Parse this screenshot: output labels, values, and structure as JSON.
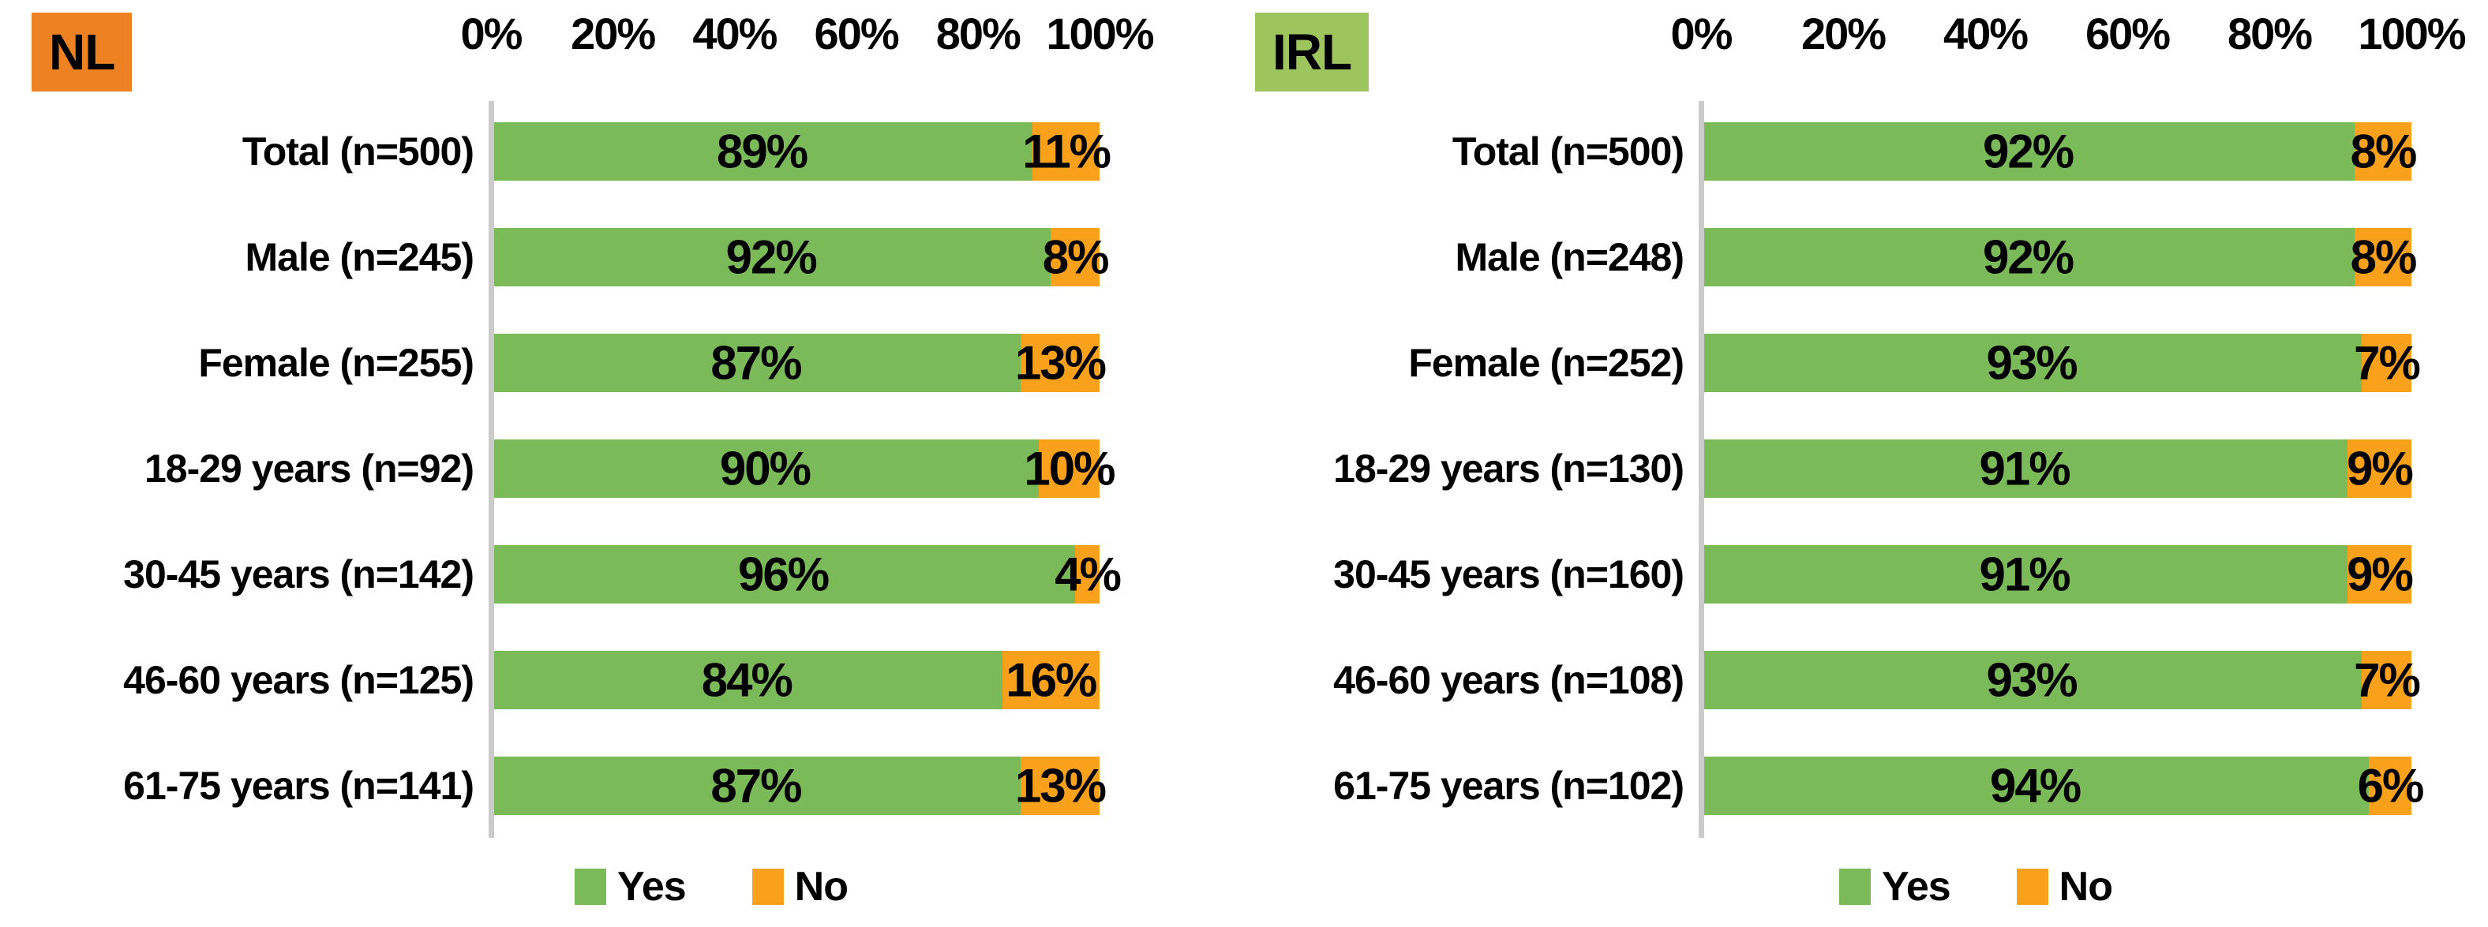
{
  "page": {
    "background": "#ffffff"
  },
  "axis_line_color": "#CBCBCB",
  "chart_data": [
    {
      "type": "bar",
      "orientation": "horizontal",
      "stacked": true,
      "title": "NL",
      "title_badge_color": "#EE8223",
      "categories": [
        "Total (n=500)",
        "Male (n=245)",
        "Female (n=255)",
        "18-29 years (n=92)",
        "30-45 years (n=142)",
        "46-60 years (n=125)",
        "61-75 years (n=141)"
      ],
      "series": [
        {
          "name": "Yes",
          "color": "#7BBA59",
          "values": [
            89,
            92,
            87,
            90,
            96,
            84,
            87
          ],
          "labels": [
            "89%",
            "92%",
            "87%",
            "90%",
            "96%",
            "84%",
            "87%"
          ]
        },
        {
          "name": "No",
          "color": "#F9A11B",
          "values": [
            11,
            8,
            13,
            10,
            4,
            16,
            13
          ],
          "labels": [
            "11%",
            "8%",
            "13%",
            "10%",
            "4%",
            "16%",
            "13%"
          ]
        }
      ],
      "xlim": [
        0,
        100
      ],
      "x_ticks": [
        "0%",
        "20%",
        "40%",
        "60%",
        "80%",
        "100%"
      ],
      "grid": false,
      "legend_position": "bottom",
      "legend": [
        {
          "label": "Yes",
          "color": "#7BBA59"
        },
        {
          "label": "No",
          "color": "#F9A11B"
        }
      ]
    },
    {
      "type": "bar",
      "orientation": "horizontal",
      "stacked": true,
      "title": "IRL",
      "title_badge_color": "#9EC45E",
      "categories": [
        "Total (n=500)",
        "Male (n=248)",
        "Female (n=252)",
        "18-29 years (n=130)",
        "30-45 years (n=160)",
        "46-60 years (n=108)",
        "61-75 years (n=102)"
      ],
      "series": [
        {
          "name": "Yes",
          "color": "#7BBA59",
          "values": [
            92,
            92,
            93,
            91,
            91,
            93,
            94
          ],
          "labels": [
            "92%",
            "92%",
            "93%",
            "91%",
            "91%",
            "93%",
            "94%"
          ]
        },
        {
          "name": "No",
          "color": "#F9A11B",
          "values": [
            8,
            8,
            7,
            9,
            9,
            7,
            6
          ],
          "labels": [
            "8%",
            "8%",
            "7%",
            "9%",
            "9%",
            "7%",
            "6%"
          ]
        }
      ],
      "xlim": [
        0,
        100
      ],
      "x_ticks": [
        "0%",
        "20%",
        "40%",
        "60%",
        "80%",
        "100%"
      ],
      "grid": false,
      "legend_position": "bottom",
      "legend": [
        {
          "label": "Yes",
          "color": "#7BBA59"
        },
        {
          "label": "No",
          "color": "#F9A11B"
        }
      ]
    }
  ]
}
